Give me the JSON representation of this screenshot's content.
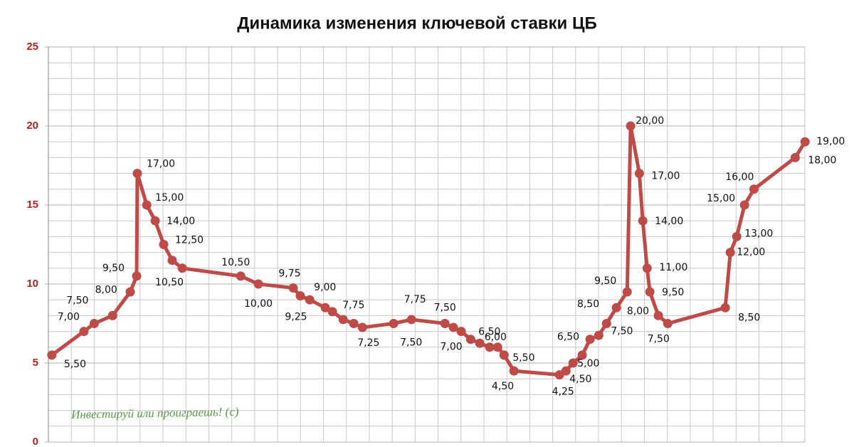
{
  "chart_data": {
    "type": "line",
    "title": "Динамика изменения ключевой ставки ЦБ",
    "annotation": "Инвестируй или проиграешь! (с)",
    "xlim": [
      0,
      33.5
    ],
    "ylim": [
      0,
      25
    ],
    "yticks": [
      0,
      5,
      10,
      15,
      20,
      25
    ],
    "grid": true,
    "series": [
      {
        "color": "#bf4b48",
        "x": [
          0.15,
          1.55,
          2.0,
          2.8,
          3.57,
          3.85,
          3.88,
          4.29,
          4.66,
          5.03,
          5.4,
          5.84,
          8.39,
          9.16,
          10.68,
          10.99,
          11.4,
          12.08,
          12.39,
          12.86,
          13.32,
          13.7,
          15.06,
          15.84,
          17.3,
          17.67,
          18.01,
          18.42,
          18.82,
          19.25,
          19.6,
          19.88,
          20.31,
          22.3,
          22.58,
          22.89,
          23.29,
          23.63,
          24.01,
          24.35,
          24.78,
          25.25,
          25.4,
          25.78,
          25.93,
          26.12,
          26.24,
          26.61,
          27.02,
          29.53,
          29.75,
          30.03,
          30.37,
          30.78,
          32.58,
          33.01
        ],
        "values": [
          5.5,
          7.0,
          7.5,
          8.0,
          9.5,
          10.5,
          17,
          15,
          14,
          12.5,
          11.5,
          11,
          10.5,
          10,
          9.75,
          9.25,
          9.0,
          8.5,
          8.25,
          7.75,
          7.5,
          7.25,
          7.5,
          7.75,
          7.5,
          7.25,
          7.0,
          6.5,
          6.25,
          6.0,
          6.0,
          5.5,
          4.5,
          4.25,
          4.5,
          5.0,
          5.5,
          6.5,
          6.75,
          7.5,
          8.5,
          9.5,
          20,
          17,
          14,
          11,
          9.5,
          8.0,
          7.5,
          8.5,
          12,
          13,
          15,
          16,
          18,
          19
        ],
        "value_labels": [
          "5,50",
          "7,00",
          "7,50",
          "8,00",
          "9,50",
          "10,50",
          "17,00",
          "15,00",
          "14,00",
          "12,50",
          null,
          null,
          "10,50",
          "10,00",
          "9,75",
          "9,25",
          "9,00",
          null,
          null,
          "7,75",
          null,
          "7,25",
          "7,50",
          "7,75",
          "7,50",
          null,
          "7,00",
          "6,50",
          null,
          null,
          "6,00",
          "5,50",
          "4,50",
          "4,25",
          "4,50",
          "5,00",
          null,
          "6,50",
          null,
          "7,50",
          "8,50",
          "9,50",
          "20,00",
          "17,00",
          "14,00",
          "11,00",
          "9,50",
          "8,00",
          "7,50",
          "8,50",
          "12,00",
          "13,00",
          "15,00",
          "16,00",
          "18,00",
          "19,00"
        ]
      }
    ]
  }
}
